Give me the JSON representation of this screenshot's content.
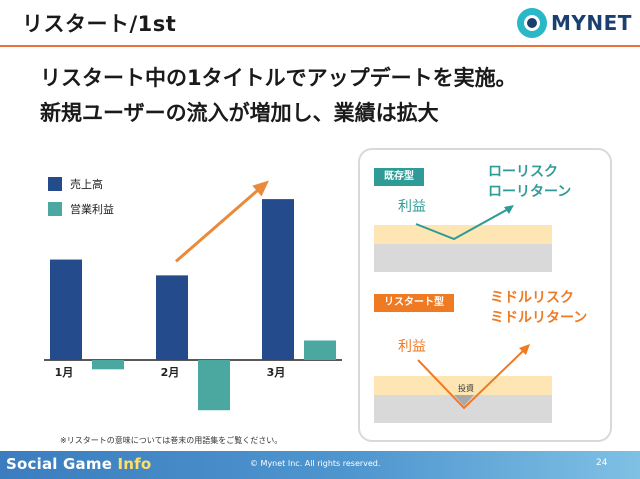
{
  "header": {
    "title": "リスタート/1st",
    "logo_text": "MYNET",
    "colors": {
      "accent_rule": "#e8733a",
      "logo_outer": "#2ab7c8",
      "logo_inner": "#1b3f6e"
    }
  },
  "headline": {
    "line1": "リスタート中の1タイトルでアップデートを実施。",
    "line2": "新規ユーザーの流入が増加し、業績は拡大"
  },
  "chart_data": {
    "type": "bar",
    "categories": [
      "1月",
      "2月",
      "3月"
    ],
    "series": [
      {
        "name": "売上高",
        "color": "#244b8c",
        "values": [
          108,
          91,
          173
        ]
      },
      {
        "name": "営業利益",
        "color": "#4aa8a1",
        "values": [
          -10,
          -54,
          21
        ]
      }
    ],
    "ylim": [
      -60,
      180
    ],
    "grid": false,
    "legend": "top-left",
    "trend_arrow": {
      "color": "#ea8a3b",
      "from_category": "2月",
      "to_category": "3月"
    },
    "footnote": "※リスタートの意味については巻末の用語集をご覧ください。"
  },
  "comparison": {
    "existing": {
      "badge": "既存型",
      "risk_line1": "ローリスク",
      "risk_line2": "ローリターン",
      "profit_label": "利益",
      "color": "#2f9b96"
    },
    "restart": {
      "badge": "リスタート型",
      "risk_line1": "ミドルリスク",
      "risk_line2": "ミドルリターン",
      "profit_label": "利益",
      "investment_label": "投資",
      "color": "#ef7a22"
    },
    "colors": {
      "investment_band": "#fde6b3",
      "baseline_band": "#d9d9d9"
    }
  },
  "footer": {
    "brand_main": "Social Game ",
    "brand_accent": "Info",
    "copyright": "© Mynet Inc. All rights reserved.",
    "page_number": "24"
  }
}
